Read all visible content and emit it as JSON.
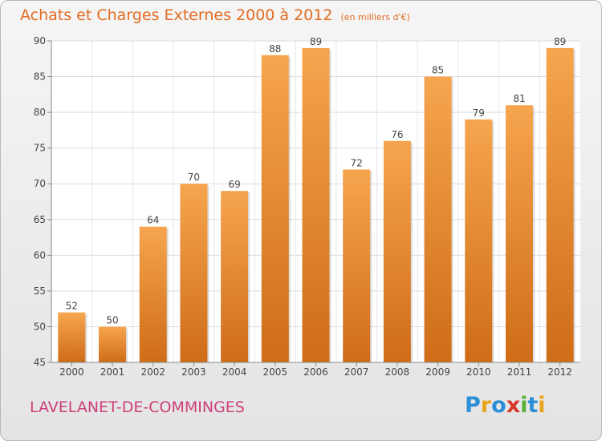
{
  "header": {
    "title": "Achats et Charges Externes 2000 à 2012",
    "subtitle": "(en milliers d'€)"
  },
  "footer": {
    "commune": "LAVELANET-DE-COMMINGES",
    "logo_text": "Proxiti",
    "logo_letters": [
      {
        "char": "P",
        "color": "#2a8fd6"
      },
      {
        "char": "r",
        "color": "#e8a31b"
      },
      {
        "char": "o",
        "color": "#2a8fd6"
      },
      {
        "char": "x",
        "color": "#d6382a"
      },
      {
        "char": "i",
        "color": "#5bb035"
      },
      {
        "char": "t",
        "color": "#2a8fd6"
      },
      {
        "char": "i",
        "color": "#e8a31b"
      }
    ]
  },
  "colors": {
    "bar_top": "#f6a54e",
    "bar_bottom": "#cf6c18",
    "title": "#e36c22",
    "commune": "#cc3f7a"
  },
  "chart_data": {
    "type": "bar",
    "title": "Achats et Charges Externes 2000 à 2012",
    "subtitle": "(en milliers d'€)",
    "categories": [
      "2000",
      "2001",
      "2002",
      "2003",
      "2004",
      "2005",
      "2006",
      "2007",
      "2008",
      "2009",
      "2010",
      "2011",
      "2012"
    ],
    "values": [
      52,
      50,
      64,
      70,
      69,
      88,
      89,
      72,
      76,
      85,
      79,
      81,
      89
    ],
    "ylim": [
      45,
      90
    ],
    "yticks": [
      45,
      50,
      55,
      60,
      65,
      70,
      75,
      80,
      85,
      90
    ],
    "grid": true,
    "legend": "none"
  }
}
